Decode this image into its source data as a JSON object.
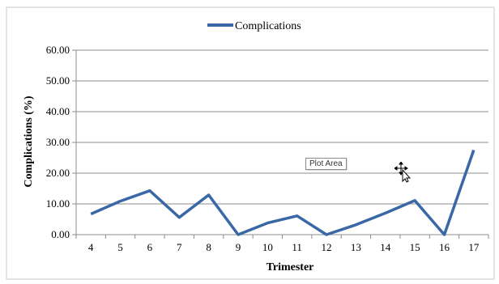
{
  "chart_data": {
    "type": "line",
    "categories": [
      "4",
      "5",
      "6",
      "7",
      "8",
      "9",
      "10",
      "11",
      "12",
      "13",
      "14",
      "15",
      "16",
      "17"
    ],
    "series": [
      {
        "name": "Complications",
        "color": "#3a68a6",
        "values": [
          6.7,
          10.9,
          14.3,
          5.6,
          12.9,
          0.0,
          3.8,
          6.1,
          0.0,
          3.2,
          7.0,
          11.1,
          0.0,
          27.5
        ]
      }
    ],
    "xlabel": "Trimester",
    "ylabel": "Complications (%)",
    "ylim": [
      0,
      60
    ],
    "yticks": [
      "0.00",
      "10.00",
      "20.00",
      "30.00",
      "40.00",
      "50.00",
      "60.00"
    ],
    "grid": true,
    "legend": "top-center"
  },
  "tooltip": {
    "text": "Plot Area"
  },
  "cursor_icon": "move-cursor-icon"
}
